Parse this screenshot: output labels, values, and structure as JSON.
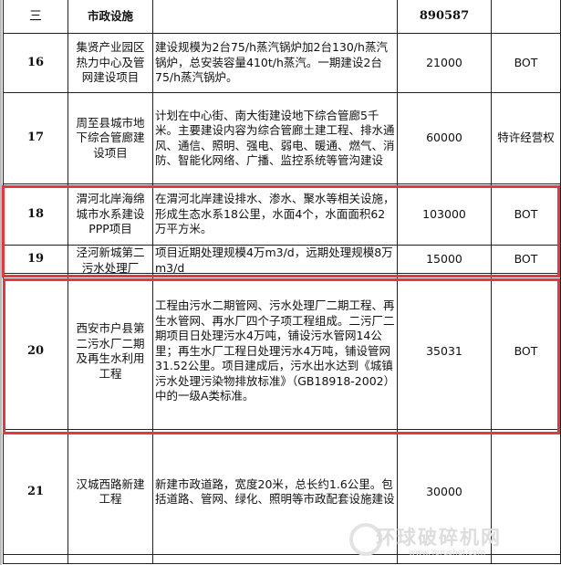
{
  "section": {
    "index": "三",
    "title": "市政设施",
    "total": "890587"
  },
  "rows": [
    {
      "no": "16",
      "name": "集贤产业园区热力中心及管网建设项目",
      "desc": "建设规模为2台75/h蒸汽锅炉加2台130/h蒸汽锅炉，总安装容量410t/h蒸汽。一期建设2台75/h蒸汽锅炉。",
      "amount": "21000",
      "mode": "BOT"
    },
    {
      "no": "17",
      "name": "周至县城市地下综合管廊建设项目",
      "desc": "计划在中心街、南大街建设地下综合管廊5千米。主要建设内容为综合管廊土建工程、排水通风、通信、照明、强电、弱电、暖通、燃气、消防、智能化网络、广播、监控系统等管沟建设",
      "amount": "60000",
      "mode": "特许经营权"
    },
    {
      "no": "18",
      "name": "渭河北岸海绵城市水系建设PPP项目",
      "desc": "在渭河北岸建设排水、渗水、聚水等相关设施，形成生态水系18公里，水面4个，水面面积62万平方米。",
      "amount": "103000",
      "mode": "BOT"
    },
    {
      "no": "19",
      "name": "泾河新城第二污水处理厂",
      "desc": "项目近期处理规模4万m3/d，远期处理规模8万m3/d",
      "amount": "15000",
      "mode": "BOT"
    },
    {
      "no": "20",
      "name": "西安市户县第二污水厂二期及再生水利用工程",
      "desc": "工程由污水二期管网、污水处理厂二期工程、再生水管网、再水厂四个子项工程组成。二污厂二期项目日处理污水4万吨，铺设污水管网14公里；再生水厂工程日处理污水4万吨，铺设管网31.52公里。项目建成后，污水出水达到《城镇污水处理污染物排放标准》（GB18918-2002）中的一级A类标准。",
      "amount": "35031",
      "mode": "BOT"
    },
    {
      "no": "21",
      "name": "汉城西路新建工程",
      "desc": "新建市政道路，宽度20米，总长约1.6公里。包括道路、管网、绿化、照明等市政配套设施建设",
      "amount": "30000",
      "mode": ""
    }
  ],
  "watermark": {
    "text": "环球破碎机网",
    "url": "www.Yerusher.com"
  },
  "colors": {
    "highlight": "#e0393e"
  }
}
